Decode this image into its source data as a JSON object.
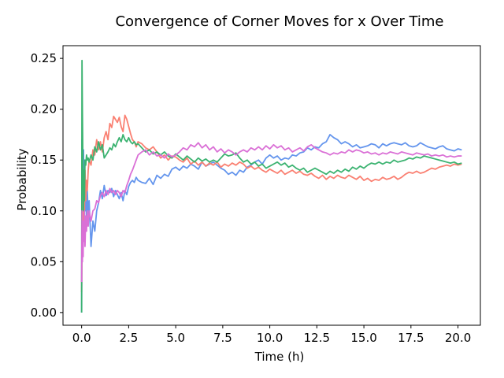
{
  "chart_data": {
    "type": "line",
    "title": "Convergence of Corner Moves for x Over Time",
    "xlabel": "Time (h)",
    "ylabel": "Probability",
    "xlim": [
      -0.99,
      21.19
    ],
    "ylim": [
      -0.0125,
      0.2625
    ],
    "xticks": [
      0.0,
      2.5,
      5.0,
      7.5,
      10.0,
      12.5,
      15.0,
      17.5,
      20.0
    ],
    "xtick_labels": [
      "0.0",
      "2.5",
      "5.0",
      "7.5",
      "10.0",
      "12.5",
      "15.0",
      "17.5",
      "20.0"
    ],
    "yticks": [
      0.0,
      0.05,
      0.1,
      0.15,
      0.2,
      0.25
    ],
    "ytick_labels": [
      "0.00",
      "0.05",
      "0.10",
      "0.15",
      "0.20",
      "0.25"
    ],
    "grid": false,
    "legend": "none",
    "series": [
      {
        "color": "#6495ED",
        "x": [
          0.0,
          0.02,
          0.04,
          0.06,
          0.08,
          0.1,
          0.12,
          0.15,
          0.18,
          0.22,
          0.26,
          0.3,
          0.35,
          0.4,
          0.5,
          0.6,
          0.7,
          0.8,
          0.9,
          1.0,
          1.1,
          1.2,
          1.3,
          1.4,
          1.5,
          1.6,
          1.7,
          1.8,
          1.9,
          2.0,
          2.1,
          2.2,
          2.3,
          2.4,
          2.5,
          2.6,
          2.7,
          2.8,
          2.9,
          3.0,
          3.2,
          3.4,
          3.6,
          3.8,
          4.0,
          4.2,
          4.4,
          4.6,
          4.8,
          5.0,
          5.2,
          5.4,
          5.6,
          5.8,
          6.0,
          6.2,
          6.4,
          6.6,
          6.8,
          7.0,
          7.2,
          7.4,
          7.6,
          7.8,
          8.0,
          8.2,
          8.4,
          8.6,
          8.8,
          9.0,
          9.2,
          9.4,
          9.6,
          9.8,
          10.0,
          10.2,
          10.4,
          10.6,
          10.8,
          11.0,
          11.2,
          11.4,
          11.6,
          11.8,
          12.0,
          12.2,
          12.4,
          12.6,
          12.8,
          13.0,
          13.2,
          13.4,
          13.6,
          13.8,
          14.0,
          14.2,
          14.4,
          14.6,
          14.8,
          15.0,
          15.2,
          15.4,
          15.6,
          15.8,
          16.0,
          16.2,
          16.4,
          16.6,
          16.8,
          17.0,
          17.2,
          17.4,
          17.6,
          17.8,
          18.0,
          18.2,
          18.4,
          18.6,
          18.8,
          19.0,
          19.2,
          19.4,
          19.6,
          19.8,
          20.0,
          20.2
        ],
        "values": [
          0.0,
          0.17,
          0.05,
          0.14,
          0.08,
          0.16,
          0.11,
          0.15,
          0.1,
          0.13,
          0.09,
          0.12,
          0.095,
          0.11,
          0.065,
          0.09,
          0.08,
          0.1,
          0.108,
          0.12,
          0.112,
          0.125,
          0.115,
          0.12,
          0.118,
          0.122,
          0.114,
          0.12,
          0.116,
          0.112,
          0.118,
          0.11,
          0.12,
          0.116,
          0.124,
          0.128,
          0.13,
          0.128,
          0.133,
          0.13,
          0.128,
          0.127,
          0.132,
          0.126,
          0.135,
          0.132,
          0.136,
          0.134,
          0.141,
          0.143,
          0.14,
          0.144,
          0.142,
          0.146,
          0.144,
          0.141,
          0.148,
          0.144,
          0.146,
          0.148,
          0.145,
          0.142,
          0.14,
          0.136,
          0.138,
          0.135,
          0.14,
          0.138,
          0.143,
          0.145,
          0.148,
          0.15,
          0.146,
          0.152,
          0.155,
          0.152,
          0.154,
          0.15,
          0.152,
          0.151,
          0.155,
          0.154,
          0.157,
          0.158,
          0.162,
          0.16,
          0.163,
          0.162,
          0.166,
          0.168,
          0.175,
          0.172,
          0.17,
          0.166,
          0.168,
          0.166,
          0.163,
          0.165,
          0.162,
          0.163,
          0.164,
          0.166,
          0.165,
          0.162,
          0.166,
          0.164,
          0.166,
          0.167,
          0.166,
          0.165,
          0.167,
          0.164,
          0.163,
          0.164,
          0.167,
          0.165,
          0.163,
          0.162,
          0.161,
          0.163,
          0.164,
          0.161,
          0.16,
          0.159,
          0.161,
          0.16
        ]
      },
      {
        "color": "#FA8072",
        "x": [
          0.0,
          0.02,
          0.04,
          0.06,
          0.08,
          0.1,
          0.12,
          0.15,
          0.18,
          0.22,
          0.26,
          0.3,
          0.35,
          0.4,
          0.5,
          0.6,
          0.7,
          0.8,
          0.9,
          1.0,
          1.1,
          1.2,
          1.3,
          1.4,
          1.5,
          1.6,
          1.7,
          1.8,
          1.9,
          2.0,
          2.1,
          2.2,
          2.3,
          2.4,
          2.5,
          2.6,
          2.7,
          2.8,
          2.9,
          3.0,
          3.2,
          3.4,
          3.6,
          3.8,
          4.0,
          4.2,
          4.4,
          4.6,
          4.8,
          5.0,
          5.2,
          5.4,
          5.6,
          5.8,
          6.0,
          6.2,
          6.4,
          6.6,
          6.8,
          7.0,
          7.2,
          7.4,
          7.6,
          7.8,
          8.0,
          8.2,
          8.4,
          8.6,
          8.8,
          9.0,
          9.2,
          9.4,
          9.6,
          9.8,
          10.0,
          10.2,
          10.4,
          10.6,
          10.8,
          11.0,
          11.2,
          11.4,
          11.6,
          11.8,
          12.0,
          12.2,
          12.4,
          12.6,
          12.8,
          13.0,
          13.2,
          13.4,
          13.6,
          13.8,
          14.0,
          14.2,
          14.4,
          14.6,
          14.8,
          15.0,
          15.2,
          15.4,
          15.6,
          15.8,
          16.0,
          16.2,
          16.4,
          16.6,
          16.8,
          17.0,
          17.2,
          17.4,
          17.6,
          17.8,
          18.0,
          18.2,
          18.4,
          18.6,
          18.8,
          19.0,
          19.2,
          19.4,
          19.6,
          19.8,
          20.0,
          20.2
        ],
        "values": [
          0.02,
          0.06,
          0.1,
          0.07,
          0.12,
          0.09,
          0.13,
          0.1,
          0.14,
          0.11,
          0.13,
          0.12,
          0.14,
          0.15,
          0.145,
          0.16,
          0.155,
          0.17,
          0.16,
          0.168,
          0.158,
          0.172,
          0.178,
          0.17,
          0.186,
          0.182,
          0.193,
          0.19,
          0.187,
          0.192,
          0.183,
          0.178,
          0.194,
          0.19,
          0.183,
          0.176,
          0.17,
          0.168,
          0.163,
          0.168,
          0.166,
          0.162,
          0.16,
          0.163,
          0.158,
          0.152,
          0.155,
          0.15,
          0.154,
          0.153,
          0.15,
          0.148,
          0.152,
          0.146,
          0.149,
          0.145,
          0.148,
          0.144,
          0.147,
          0.145,
          0.148,
          0.143,
          0.146,
          0.144,
          0.147,
          0.145,
          0.148,
          0.146,
          0.142,
          0.144,
          0.141,
          0.143,
          0.14,
          0.138,
          0.141,
          0.139,
          0.137,
          0.14,
          0.136,
          0.138,
          0.14,
          0.137,
          0.139,
          0.136,
          0.135,
          0.137,
          0.134,
          0.132,
          0.135,
          0.131,
          0.134,
          0.132,
          0.135,
          0.133,
          0.132,
          0.135,
          0.133,
          0.131,
          0.134,
          0.13,
          0.132,
          0.129,
          0.131,
          0.13,
          0.133,
          0.131,
          0.132,
          0.134,
          0.131,
          0.133,
          0.136,
          0.138,
          0.137,
          0.139,
          0.137,
          0.138,
          0.14,
          0.142,
          0.141,
          0.143,
          0.144,
          0.145,
          0.144,
          0.146,
          0.145,
          0.146
        ]
      },
      {
        "color": "#3CB371",
        "x": [
          0.0,
          0.02,
          0.04,
          0.06,
          0.08,
          0.1,
          0.12,
          0.15,
          0.18,
          0.22,
          0.26,
          0.3,
          0.35,
          0.4,
          0.5,
          0.6,
          0.7,
          0.8,
          0.9,
          1.0,
          1.1,
          1.2,
          1.3,
          1.4,
          1.5,
          1.6,
          1.7,
          1.8,
          1.9,
          2.0,
          2.1,
          2.2,
          2.3,
          2.4,
          2.5,
          2.6,
          2.7,
          2.8,
          2.9,
          3.0,
          3.2,
          3.4,
          3.6,
          3.8,
          4.0,
          4.2,
          4.4,
          4.6,
          4.8,
          5.0,
          5.2,
          5.4,
          5.6,
          5.8,
          6.0,
          6.2,
          6.4,
          6.6,
          6.8,
          7.0,
          7.2,
          7.4,
          7.6,
          7.8,
          8.0,
          8.2,
          8.4,
          8.6,
          8.8,
          9.0,
          9.2,
          9.4,
          9.6,
          9.8,
          10.0,
          10.2,
          10.4,
          10.6,
          10.8,
          11.0,
          11.2,
          11.4,
          11.6,
          11.8,
          12.0,
          12.2,
          12.4,
          12.6,
          12.8,
          13.0,
          13.2,
          13.4,
          13.6,
          13.8,
          14.0,
          14.2,
          14.4,
          14.6,
          14.8,
          15.0,
          15.2,
          15.4,
          15.6,
          15.8,
          16.0,
          16.2,
          16.4,
          16.6,
          16.8,
          17.0,
          17.2,
          17.4,
          17.6,
          17.8,
          18.0,
          18.2,
          18.4,
          18.6,
          18.8,
          19.0,
          19.2,
          19.4,
          19.6,
          19.8,
          20.0,
          20.2
        ],
        "values": [
          0.0,
          0.248,
          0.2,
          0.16,
          0.13,
          0.1,
          0.14,
          0.11,
          0.15,
          0.145,
          0.155,
          0.15,
          0.152,
          0.148,
          0.155,
          0.15,
          0.163,
          0.158,
          0.168,
          0.16,
          0.165,
          0.152,
          0.155,
          0.158,
          0.162,
          0.16,
          0.166,
          0.163,
          0.168,
          0.172,
          0.168,
          0.175,
          0.17,
          0.168,
          0.172,
          0.168,
          0.166,
          0.168,
          0.165,
          0.166,
          0.162,
          0.158,
          0.16,
          0.156,
          0.158,
          0.155,
          0.158,
          0.154,
          0.152,
          0.156,
          0.153,
          0.15,
          0.154,
          0.151,
          0.148,
          0.152,
          0.149,
          0.151,
          0.148,
          0.15,
          0.148,
          0.152,
          0.156,
          0.154,
          0.155,
          0.157,
          0.152,
          0.148,
          0.15,
          0.146,
          0.148,
          0.144,
          0.146,
          0.142,
          0.144,
          0.146,
          0.148,
          0.145,
          0.147,
          0.143,
          0.145,
          0.142,
          0.14,
          0.142,
          0.138,
          0.14,
          0.142,
          0.14,
          0.138,
          0.136,
          0.139,
          0.137,
          0.14,
          0.138,
          0.141,
          0.139,
          0.143,
          0.141,
          0.144,
          0.142,
          0.145,
          0.147,
          0.146,
          0.148,
          0.146,
          0.148,
          0.147,
          0.15,
          0.148,
          0.149,
          0.15,
          0.152,
          0.151,
          0.153,
          0.152,
          0.154,
          0.153,
          0.152,
          0.151,
          0.15,
          0.149,
          0.148,
          0.147,
          0.148,
          0.146,
          0.147
        ]
      },
      {
        "color": "#DA70D6",
        "x": [
          0.0,
          0.02,
          0.04,
          0.06,
          0.08,
          0.1,
          0.12,
          0.15,
          0.18,
          0.22,
          0.26,
          0.3,
          0.35,
          0.4,
          0.5,
          0.6,
          0.7,
          0.8,
          0.9,
          1.0,
          1.1,
          1.2,
          1.3,
          1.4,
          1.5,
          1.6,
          1.7,
          1.8,
          1.9,
          2.0,
          2.1,
          2.2,
          2.3,
          2.4,
          2.5,
          2.6,
          2.7,
          2.8,
          2.9,
          3.0,
          3.2,
          3.4,
          3.6,
          3.8,
          4.0,
          4.2,
          4.4,
          4.6,
          4.8,
          5.0,
          5.2,
          5.4,
          5.6,
          5.8,
          6.0,
          6.2,
          6.4,
          6.6,
          6.8,
          7.0,
          7.2,
          7.4,
          7.6,
          7.8,
          8.0,
          8.2,
          8.4,
          8.6,
          8.8,
          9.0,
          9.2,
          9.4,
          9.6,
          9.8,
          10.0,
          10.2,
          10.4,
          10.6,
          10.8,
          11.0,
          11.2,
          11.4,
          11.6,
          11.8,
          12.0,
          12.2,
          12.4,
          12.6,
          12.8,
          13.0,
          13.2,
          13.4,
          13.6,
          13.8,
          14.0,
          14.2,
          14.4,
          14.6,
          14.8,
          15.0,
          15.2,
          15.4,
          15.6,
          15.8,
          16.0,
          16.2,
          16.4,
          16.6,
          16.8,
          17.0,
          17.2,
          17.4,
          17.6,
          17.8,
          18.0,
          18.2,
          18.4,
          18.6,
          18.8,
          19.0,
          19.2,
          19.4,
          19.6,
          19.8,
          20.0,
          20.2
        ],
        "values": [
          0.03,
          0.1,
          0.05,
          0.08,
          0.055,
          0.09,
          0.07,
          0.1,
          0.065,
          0.095,
          0.08,
          0.1,
          0.085,
          0.1,
          0.09,
          0.1,
          0.102,
          0.11,
          0.108,
          0.115,
          0.118,
          0.114,
          0.12,
          0.116,
          0.122,
          0.118,
          0.12,
          0.116,
          0.12,
          0.118,
          0.114,
          0.12,
          0.118,
          0.125,
          0.13,
          0.136,
          0.14,
          0.145,
          0.15,
          0.155,
          0.158,
          0.16,
          0.155,
          0.158,
          0.154,
          0.155,
          0.152,
          0.156,
          0.153,
          0.155,
          0.158,
          0.162,
          0.16,
          0.165,
          0.163,
          0.167,
          0.162,
          0.165,
          0.16,
          0.163,
          0.158,
          0.161,
          0.157,
          0.16,
          0.158,
          0.155,
          0.158,
          0.16,
          0.158,
          0.162,
          0.16,
          0.163,
          0.16,
          0.164,
          0.161,
          0.165,
          0.162,
          0.164,
          0.16,
          0.162,
          0.158,
          0.16,
          0.162,
          0.159,
          0.163,
          0.165,
          0.162,
          0.16,
          0.158,
          0.157,
          0.155,
          0.157,
          0.156,
          0.158,
          0.157,
          0.16,
          0.158,
          0.16,
          0.159,
          0.157,
          0.158,
          0.156,
          0.157,
          0.155,
          0.157,
          0.156,
          0.158,
          0.157,
          0.156,
          0.158,
          0.157,
          0.156,
          0.155,
          0.157,
          0.156,
          0.155,
          0.156,
          0.154,
          0.155,
          0.154,
          0.155,
          0.153,
          0.154,
          0.153,
          0.154,
          0.154
        ]
      }
    ]
  }
}
